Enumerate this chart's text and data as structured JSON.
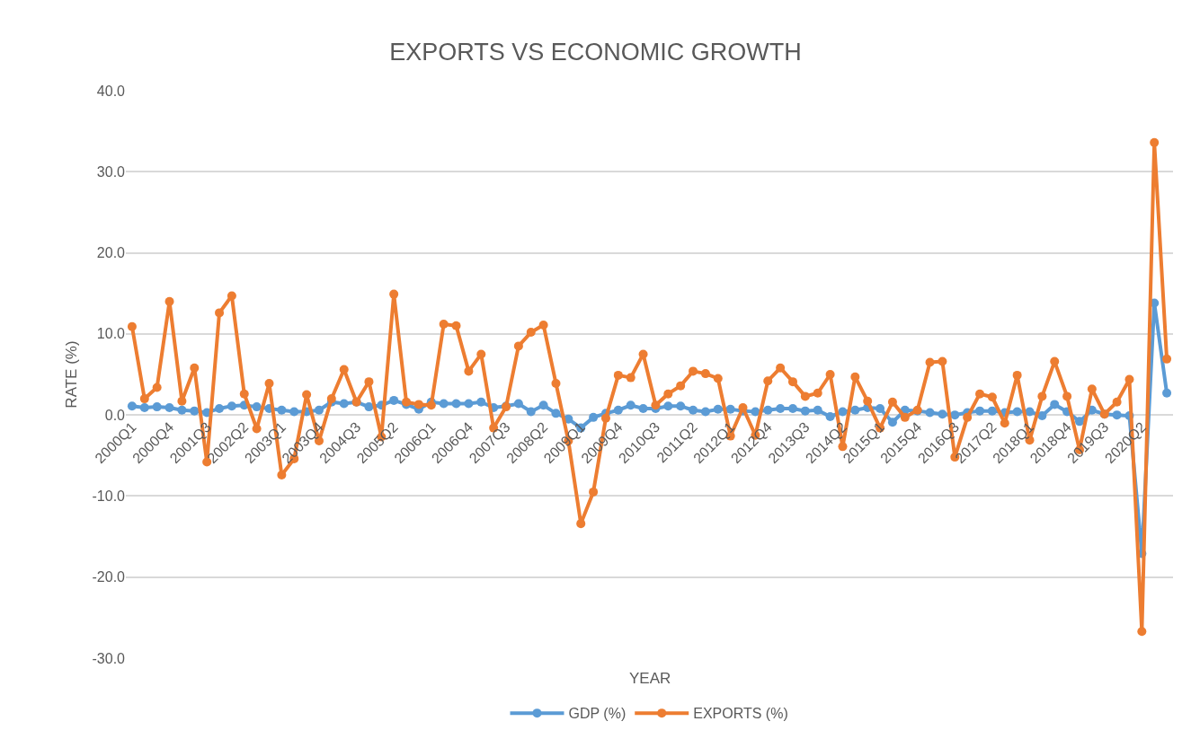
{
  "chart_data": {
    "type": "line",
    "title": "EXPORTS VS ECONOMIC GROWTH",
    "xlabel": "YEAR",
    "ylabel": "RATE (%)",
    "categories": [
      "2000Q1",
      null,
      null,
      "2000Q4",
      null,
      null,
      "2001Q3",
      null,
      null,
      "2002Q2",
      null,
      null,
      "2003Q1",
      null,
      null,
      "2003Q4",
      null,
      null,
      "2004Q3",
      null,
      null,
      "2005Q2",
      null,
      null,
      "2006Q1",
      null,
      null,
      "2006Q4",
      null,
      null,
      "2007Q3",
      null,
      null,
      "2008Q2",
      null,
      null,
      "2009Q1",
      null,
      null,
      "2009Q4",
      null,
      null,
      "2010Q3",
      null,
      null,
      "2011Q2",
      null,
      null,
      "2012Q1",
      null,
      null,
      "2012Q4",
      null,
      null,
      "2013Q3",
      null,
      null,
      "2014Q2",
      null,
      null,
      "2015Q1",
      null,
      null,
      "2015Q4",
      null,
      null,
      "2016Q3",
      null,
      null,
      "2017Q2",
      null,
      null,
      "2018Q1",
      null,
      null,
      "2018Q4",
      null,
      null,
      "2019Q3",
      null,
      null,
      "2020Q2",
      null,
      null
    ],
    "series": [
      {
        "name": "GDP (%)",
        "color": "#5b9bd5",
        "values": [
          1.1,
          0.9,
          1.0,
          0.9,
          0.6,
          0.5,
          0.3,
          0.8,
          1.1,
          1.2,
          1.0,
          0.8,
          0.6,
          0.4,
          0.4,
          0.6,
          1.6,
          1.4,
          1.6,
          1.0,
          1.2,
          1.8,
          1.3,
          0.7,
          1.6,
          1.4,
          1.4,
          1.4,
          1.6,
          0.9,
          1.1,
          1.4,
          0.4,
          1.2,
          0.2,
          -0.5,
          -1.6,
          -0.3,
          0.2,
          0.6,
          1.2,
          0.8,
          0.8,
          1.1,
          1.1,
          0.6,
          0.4,
          0.7,
          0.7,
          0.5,
          0.4,
          0.6,
          0.8,
          0.8,
          0.5,
          0.6,
          -0.2,
          0.4,
          0.6,
          0.9,
          0.8,
          -0.9,
          0.6,
          0.5,
          0.3,
          0.1,
          0.0,
          0.3,
          0.5,
          0.5,
          0.3,
          0.4,
          0.4,
          -0.1,
          1.3,
          0.4,
          -0.8,
          0.6,
          0.1,
          0.0,
          -0.1,
          -17.1,
          13.8,
          2.7
        ]
      },
      {
        "name": "EXPORTS (%)",
        "color": "#ed7d31",
        "values": [
          10.9,
          2.0,
          3.4,
          14.0,
          1.7,
          5.8,
          -5.8,
          12.6,
          14.7,
          2.6,
          -1.7,
          3.9,
          -7.4,
          -5.4,
          2.5,
          -3.2,
          2.0,
          5.6,
          1.6,
          4.1,
          -2.7,
          14.9,
          1.6,
          1.3,
          1.2,
          11.2,
          11.0,
          5.4,
          7.5,
          -1.6,
          1.0,
          8.5,
          10.2,
          11.1,
          3.9,
          -3.2,
          -13.4,
          -9.5,
          -0.4,
          4.9,
          4.6,
          7.5,
          1.2,
          2.6,
          3.6,
          5.4,
          5.1,
          4.5,
          -2.6,
          0.9,
          -2.5,
          4.2,
          5.8,
          4.1,
          2.3,
          2.7,
          5.0,
          -3.9,
          4.7,
          1.7,
          -1.6,
          1.6,
          -0.3,
          0.6,
          6.5,
          6.6,
          -5.2,
          -0.3,
          2.6,
          2.2,
          -1.0,
          4.9,
          -3.1,
          2.3,
          6.6,
          2.3,
          -4.3,
          3.2,
          0.1,
          1.6,
          4.4,
          -26.7,
          33.6,
          6.9
        ]
      }
    ],
    "ylim": [
      -30,
      40
    ],
    "yticks": [
      {
        "value": -30,
        "label": "-30.0"
      },
      {
        "value": -20,
        "label": "-20.0"
      },
      {
        "value": -10,
        "label": "-10.0"
      },
      {
        "value": 0,
        "label": "0.0"
      },
      {
        "value": 10,
        "label": "10.0"
      },
      {
        "value": 20,
        "label": "20.0"
      },
      {
        "value": 30,
        "label": "30.0"
      },
      {
        "value": 40,
        "label": "40.0"
      }
    ],
    "grid": "y",
    "legend": "bottom",
    "marker": "circle",
    "line_style": "solid"
  }
}
